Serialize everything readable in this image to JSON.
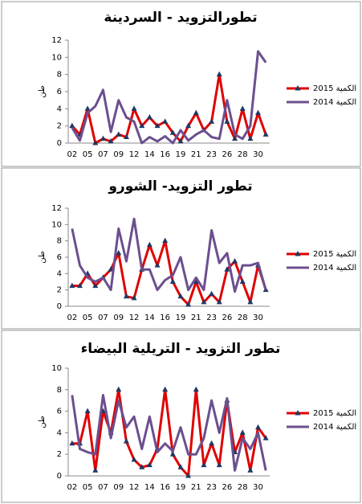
{
  "chart_data": [
    {
      "type": "line",
      "title": "تطورالتزويد - السردينة",
      "y_label": "طن",
      "categories": [
        "02",
        null,
        "05",
        null,
        "07",
        null,
        "09",
        null,
        "12",
        null,
        "14",
        null,
        "16",
        null,
        "19",
        null,
        "21",
        null,
        "23",
        null,
        "26",
        null,
        "28",
        null,
        "30",
        null
      ],
      "ylim": [
        0,
        12
      ],
      "yticks": [
        0,
        2,
        4,
        6,
        8,
        10,
        12
      ],
      "series": [
        {
          "name": "2015 الكمية",
          "color": "#e00000",
          "marker": "triangle",
          "values": [
            2,
            1,
            4,
            0,
            0.5,
            0.2,
            1,
            0.7,
            4,
            2,
            3,
            2,
            2.5,
            1.2,
            0.2,
            2,
            3.5,
            1.5,
            2.5,
            8,
            2.5,
            0.5,
            4,
            0.5,
            3.5,
            1
          ]
        },
        {
          "name": "2014 الكمية",
          "color": "#6b4f8f",
          "values": [
            1.8,
            0.3,
            3.5,
            4.3,
            6.2,
            1.3,
            5,
            3,
            2.5,
            0,
            0.7,
            0.2,
            0.8,
            0,
            1.5,
            0.3,
            1,
            1.5,
            0.7,
            0.5,
            5,
            1,
            0.5,
            2,
            10.7,
            9.4
          ]
        }
      ]
    },
    {
      "type": "line",
      "title": "تطور التزويد- الشورو",
      "y_label": "طن",
      "categories": [
        "02",
        null,
        "05",
        null,
        "07",
        null,
        "09",
        null,
        "12",
        null,
        "14",
        null,
        "16",
        null,
        "19",
        null,
        "21",
        null,
        "23",
        null,
        "26",
        null,
        "28",
        null,
        "30",
        null
      ],
      "ylim": [
        0,
        12
      ],
      "yticks": [
        0,
        2,
        4,
        6,
        8,
        10,
        12
      ],
      "series": [
        {
          "name": "2015 الكمية",
          "color": "#e00000",
          "marker": "triangle",
          "values": [
            2.5,
            2.5,
            4,
            2.5,
            3.5,
            4.5,
            6.5,
            1.2,
            1,
            4.5,
            7.5,
            5,
            8,
            3,
            1.2,
            0.2,
            3,
            0.5,
            1.5,
            0.5,
            4.5,
            5.5,
            3,
            0.5,
            5,
            2
          ]
        },
        {
          "name": "2014 الكمية",
          "color": "#6b4f8f",
          "values": [
            9.5,
            5,
            3.5,
            3,
            3.5,
            2,
            9.5,
            5.5,
            10.7,
            4.5,
            4.5,
            2,
            3.2,
            3.8,
            6,
            2,
            3.5,
            2,
            9.3,
            5.3,
            6.5,
            1.8,
            5,
            5,
            5.3,
            2
          ]
        }
      ]
    },
    {
      "type": "line",
      "title": "تطور التزويد - التريلية البيضاء",
      "y_label": "طن",
      "categories": [
        "02",
        null,
        "05",
        null,
        "07",
        null,
        "09",
        null,
        "12",
        null,
        "14",
        null,
        "16",
        null,
        "19",
        null,
        "21",
        null,
        "23",
        null,
        "26",
        null,
        "28",
        null,
        "30",
        null
      ],
      "ylim": [
        0,
        10
      ],
      "yticks": [
        0,
        2,
        4,
        6,
        8,
        10
      ],
      "series": [
        {
          "name": "2015 الكمية",
          "color": "#e00000",
          "marker": "triangle",
          "values": [
            3,
            3,
            6,
            0.5,
            6,
            4,
            8,
            3.2,
            1.5,
            0.8,
            1,
            2.5,
            8,
            2,
            0.8,
            0,
            8,
            1,
            3,
            1,
            7,
            2.2,
            4,
            0.5,
            4.5,
            3.5
          ]
        },
        {
          "name": "2014 الكمية",
          "color": "#6b4f8f",
          "values": [
            7.5,
            2.5,
            2.2,
            2,
            7.5,
            3.5,
            7,
            4.5,
            5.5,
            2.5,
            5.5,
            2.2,
            3,
            2.3,
            4.5,
            2,
            2,
            3.5,
            7,
            4,
            7.2,
            0.5,
            3.5,
            2.5,
            4,
            0.5
          ]
        }
      ]
    }
  ]
}
